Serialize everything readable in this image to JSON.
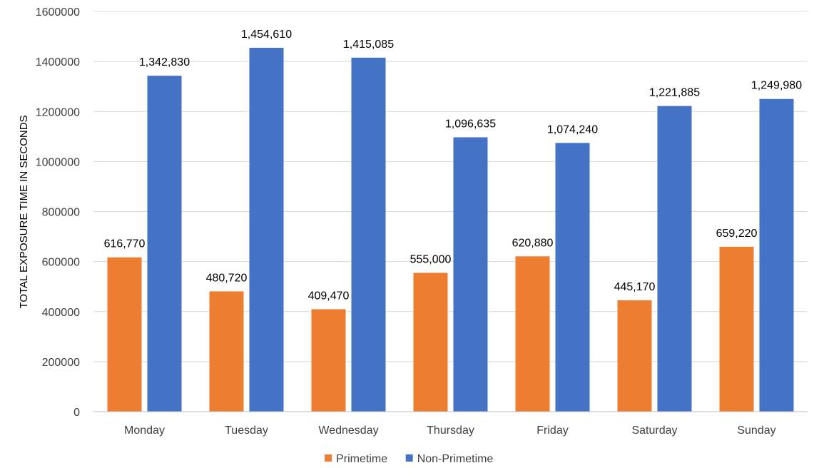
{
  "chart_data": {
    "type": "bar",
    "title": "",
    "xlabel": "",
    "ylabel": "TOTAL EXPOSURE TIME IN SECONDS",
    "ylim": [
      0,
      1600000
    ],
    "yticks": [
      0,
      200000,
      400000,
      600000,
      800000,
      1000000,
      1200000,
      1400000,
      1600000
    ],
    "ytick_labels": [
      "0",
      "200000",
      "400000",
      "600000",
      "800000",
      "1000000",
      "1200000",
      "1400000",
      "1600000"
    ],
    "grid": true,
    "legend_position": "bottom",
    "categories": [
      "Monday",
      "Tuesday",
      "Wednesday",
      "Thursday",
      "Friday",
      "Saturday",
      "Sunday"
    ],
    "series": [
      {
        "name": "Primetime",
        "color": "#ed7d31",
        "values": [
          616770,
          480720,
          409470,
          555000,
          620880,
          445170,
          659220
        ],
        "labels": [
          "616,770",
          "480,720",
          "409,470",
          "555,000",
          "620,880",
          "445,170",
          "659,220"
        ]
      },
      {
        "name": "Non-Primetime",
        "color": "#4472c4",
        "values": [
          1342830,
          1454610,
          1415085,
          1096635,
          1074240,
          1221885,
          1249980
        ],
        "labels": [
          "1,342,830",
          "1,454,610",
          "1,415,085",
          "1,096,635",
          "1,074,240",
          "1,221,885",
          "1,249,980"
        ]
      }
    ]
  }
}
